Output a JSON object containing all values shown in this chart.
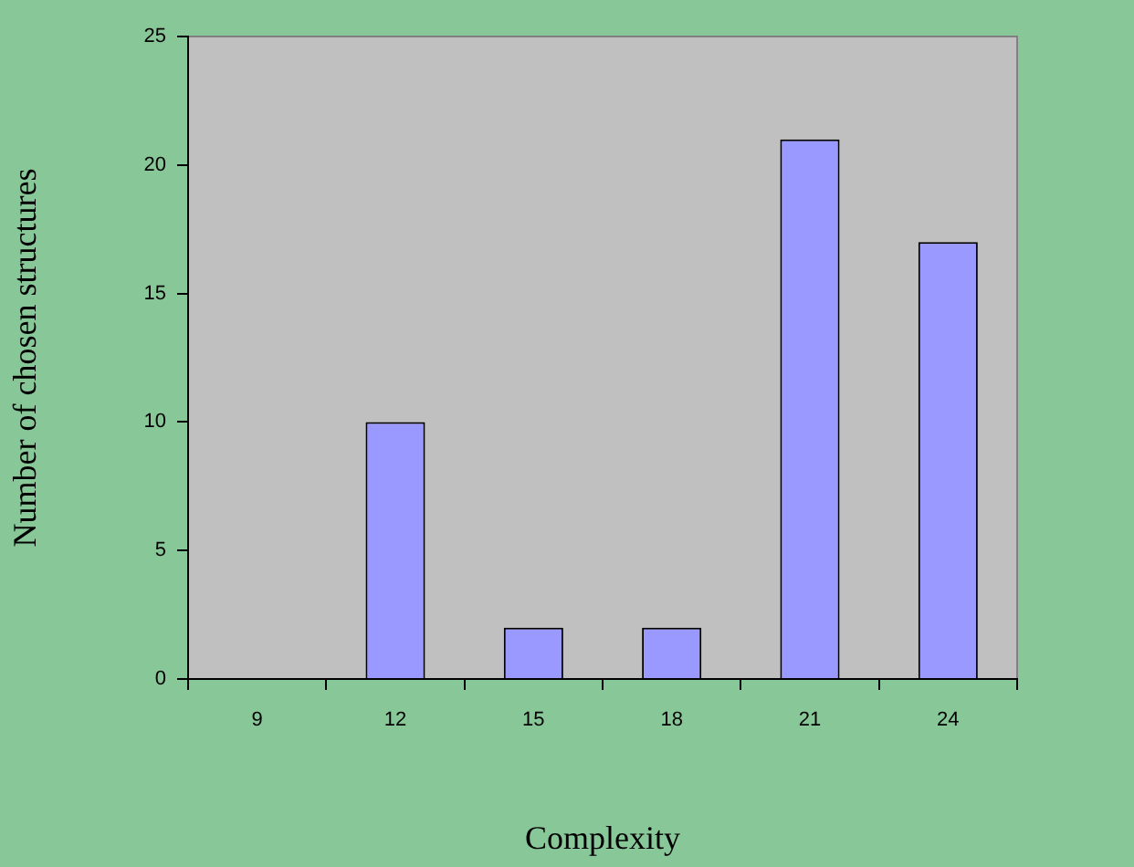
{
  "chart_data": {
    "type": "bar",
    "xlabel": "Complexity",
    "ylabel": "Number of chosen structures",
    "categories": [
      "9",
      "12",
      "15",
      "18",
      "21",
      "24"
    ],
    "values": [
      0,
      10,
      2,
      2,
      21,
      17
    ],
    "color": "#9999ff",
    "ylim": [
      0,
      25
    ],
    "yticks": [
      0,
      5,
      10,
      15,
      20,
      25
    ]
  }
}
